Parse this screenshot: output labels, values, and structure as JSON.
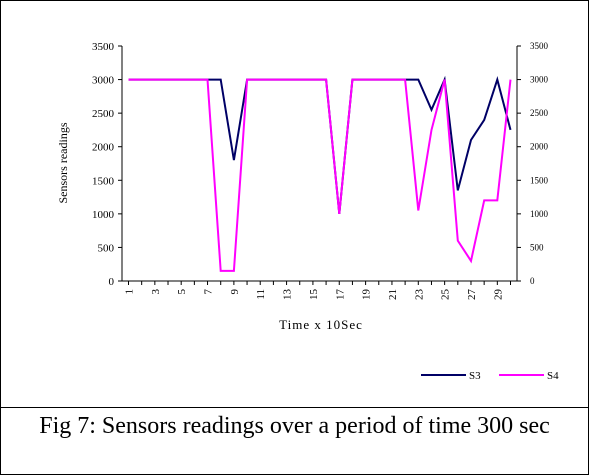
{
  "caption": "Fig 7: Sensors readings over a period of time 300 sec",
  "chart_data": {
    "type": "line",
    "title": "",
    "xlabel": "Time  x 10Sec",
    "ylabel": "Sensors readings",
    "ylim": [
      0,
      3500
    ],
    "y_ticks": [
      0,
      500,
      1000,
      1500,
      2000,
      2500,
      3000,
      3500
    ],
    "y2_ticks": [
      0,
      500,
      1000,
      1500,
      2000,
      2500,
      3000,
      3500
    ],
    "x_tick_labels": [
      "1",
      "3",
      "5",
      "7",
      "9",
      "11",
      "13",
      "15",
      "17",
      "19",
      "21",
      "23",
      "25",
      "27",
      "29"
    ],
    "x": [
      1,
      2,
      3,
      4,
      5,
      6,
      7,
      8,
      9,
      10,
      11,
      12,
      13,
      14,
      15,
      16,
      17,
      18,
      19,
      20,
      21,
      22,
      23,
      24,
      25,
      26,
      27,
      28,
      29,
      30
    ],
    "grid": false,
    "legend_position": "bottom-right",
    "series": [
      {
        "name": "S3",
        "color": "#000066",
        "values": [
          3000,
          3000,
          3000,
          3000,
          3000,
          3000,
          3000,
          3000,
          1800,
          3000,
          3000,
          3000,
          3000,
          3000,
          3000,
          3000,
          1000,
          3000,
          3000,
          3000,
          3000,
          3000,
          3000,
          2550,
          3000,
          1350,
          2100,
          2400,
          3000,
          2250
        ]
      },
      {
        "name": "S4",
        "color": "#ff00ff",
        "values": [
          3000,
          3000,
          3000,
          3000,
          3000,
          3000,
          3000,
          150,
          150,
          3000,
          3000,
          3000,
          3000,
          3000,
          3000,
          3000,
          1000,
          3000,
          3000,
          3000,
          3000,
          3000,
          1050,
          2250,
          3000,
          600,
          300,
          1200,
          1200,
          3000
        ]
      }
    ]
  }
}
